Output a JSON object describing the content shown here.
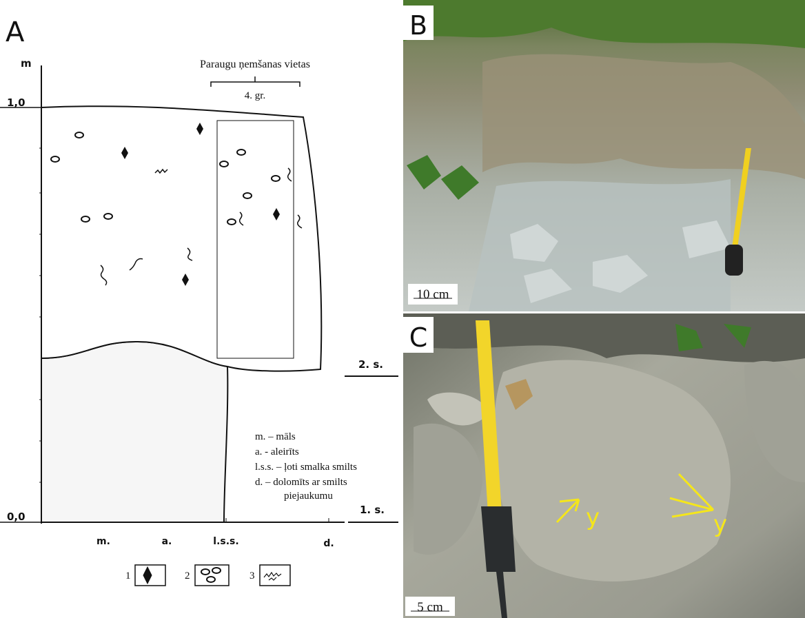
{
  "panel_a": {
    "label": "A",
    "y_axis": {
      "unit": "m",
      "ticks": [
        "1,0",
        "0,0"
      ]
    },
    "sampling": {
      "title": "Paraugu ņemšanas vietas",
      "group": "4. gr."
    },
    "x_axis": [
      "m.",
      "a.",
      "l.s.s.",
      "d."
    ],
    "levels": [
      "2. s.",
      "1. s."
    ],
    "legend": [
      "m. – māls",
      "a. - aleirīts",
      "l.s.s. – ļoti smalka smilts",
      "d. – dolomīts ar smilts",
      "piejaukumu"
    ],
    "key": [
      "1",
      "2",
      "3"
    ]
  },
  "panel_b": {
    "label": "B",
    "scale": "10 cm"
  },
  "panel_c": {
    "label": "C",
    "scale": "5 cm",
    "annotations": [
      "y",
      "y"
    ]
  }
}
